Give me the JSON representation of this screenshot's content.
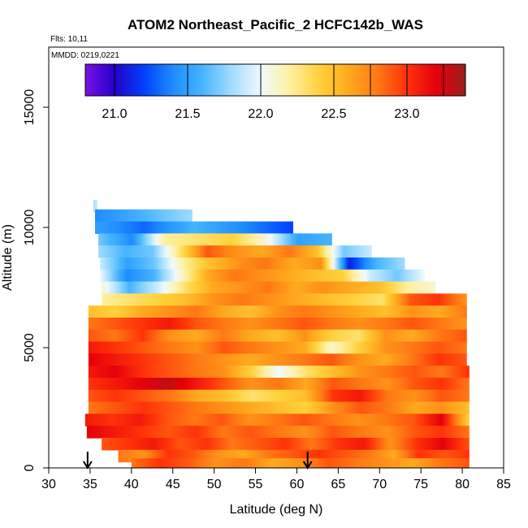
{
  "chart_data": {
    "type": "heatmap",
    "title": "ATOM2 Northeast_Pacific_2 HCFC142b_WAS",
    "flights_note": "Flts: 10,11",
    "dates_note": "MMDD: 0219,0221",
    "xlabel": "Latitude (deg N)",
    "ylabel": "Altitude (m)",
    "xlim": [
      30,
      85
    ],
    "ylim": [
      0,
      17500
    ],
    "x_ticks": [
      "30",
      "35",
      "40",
      "45",
      "50",
      "55",
      "60",
      "65",
      "70",
      "75",
      "80",
      "85"
    ],
    "y_ticks": [
      "0",
      "5000",
      "10000",
      "15000"
    ],
    "colorbar": {
      "range": [
        20.8,
        23.4
      ],
      "tick_values": [
        21.0,
        21.5,
        22.0,
        22.5,
        23.0
      ],
      "tick_labels": [
        "21.0",
        "21.5",
        "22.0",
        "22.5",
        "23.0"
      ],
      "palette": [
        "#7a10e6",
        "#2400c8",
        "#0040ff",
        "#1e8cff",
        "#46b4ff",
        "#a0dcff",
        "#f0faff",
        "#fff0a0",
        "#ffd23c",
        "#ffaa1e",
        "#ff7814",
        "#ff320a",
        "#e6000a",
        "#9b1e1e"
      ]
    },
    "arrows_at_latitude": [
      34.7,
      61.3
    ],
    "layers": [
      {
        "alt": 10900,
        "lat": [
          35.4,
          35.8
        ],
        "values": [
          21.8,
          21.9
        ]
      },
      {
        "alt": 10500,
        "lat": [
          35.6,
          47.3
        ],
        "values": [
          21.4,
          21.6,
          21.8
        ]
      },
      {
        "alt": 10000,
        "lat": [
          35.6,
          59.5
        ],
        "values": [
          21.5,
          21.3,
          21.6,
          21.4,
          21.2
        ]
      },
      {
        "alt": 9500,
        "lat": [
          36.0,
          64.2
        ],
        "values": [
          21.7,
          21.4,
          22.2,
          22.3,
          22.4,
          22.1,
          21.5,
          21.6
        ]
      },
      {
        "alt": 9000,
        "lat": [
          36.0,
          69.0
        ],
        "values": [
          21.8,
          21.6,
          21.7,
          22.3,
          22.9,
          22.7,
          22.6,
          22.8,
          22.5,
          21.7,
          21.9
        ]
      },
      {
        "alt": 8500,
        "lat": [
          36.2,
          73.0
        ],
        "values": [
          21.9,
          21.5,
          21.7,
          22.2,
          22.5,
          22.7,
          22.8,
          22.6,
          22.7,
          21.1,
          21.6,
          21.8
        ]
      },
      {
        "alt": 8000,
        "lat": [
          36.2,
          75.4
        ],
        "values": [
          22.0,
          21.4,
          21.6,
          22.1,
          22.6,
          22.8,
          22.7,
          22.6,
          22.5,
          22.4,
          21.9,
          21.7,
          22.0
        ]
      },
      {
        "alt": 7500,
        "lat": [
          36.4,
          76.7
        ],
        "values": [
          22.1,
          21.6,
          21.9,
          22.3,
          22.6,
          22.7,
          22.8,
          22.6,
          22.7,
          22.6,
          22.5,
          22.2,
          22.1
        ]
      },
      {
        "alt": 7000,
        "lat": [
          36.4,
          80.5
        ],
        "values": [
          22.2,
          22.3,
          22.4,
          22.5,
          22.7,
          22.8,
          22.7,
          22.6,
          22.5,
          22.4,
          22.3,
          22.9,
          23.0,
          22.7
        ]
      },
      {
        "alt": 6500,
        "lat": [
          34.8,
          80.5
        ],
        "values": [
          22.5,
          22.4,
          22.6,
          22.7,
          22.8,
          22.6,
          22.5,
          22.7,
          22.8,
          22.7,
          22.6,
          22.5,
          22.7,
          22.6,
          22.8
        ]
      },
      {
        "alt": 6000,
        "lat": [
          34.8,
          80.5
        ],
        "values": [
          22.8,
          22.9,
          23.0,
          23.1,
          22.9,
          22.8,
          22.7,
          22.8,
          22.9,
          22.8,
          22.7,
          22.8,
          22.9,
          22.8,
          22.7
        ]
      },
      {
        "alt": 5500,
        "lat": [
          34.8,
          80.5
        ],
        "values": [
          22.9,
          22.8,
          23.0,
          22.7,
          22.6,
          22.8,
          22.6,
          22.5,
          22.7,
          22.4,
          22.3,
          22.7,
          22.6,
          22.8,
          22.9
        ]
      },
      {
        "alt": 5000,
        "lat": [
          34.8,
          80.5
        ],
        "values": [
          23.1,
          23.0,
          22.9,
          22.8,
          22.7,
          22.9,
          22.8,
          22.7,
          22.6,
          22.1,
          22.4,
          22.7,
          22.8,
          22.9,
          22.8
        ]
      },
      {
        "alt": 4500,
        "lat": [
          34.8,
          80.5
        ],
        "values": [
          23.2,
          23.1,
          23.0,
          22.9,
          22.8,
          22.7,
          22.6,
          22.7,
          22.8,
          22.9,
          22.7,
          22.6,
          22.8,
          23.0,
          22.9
        ]
      },
      {
        "alt": 4000,
        "lat": [
          34.8,
          80.8
        ],
        "values": [
          23.1,
          23.2,
          23.0,
          22.9,
          22.8,
          22.7,
          22.4,
          22.0,
          22.3,
          22.5,
          22.7,
          22.8,
          22.9,
          22.8,
          23.0
        ]
      },
      {
        "alt": 3500,
        "lat": [
          34.8,
          80.8
        ],
        "values": [
          23.0,
          23.1,
          23.2,
          23.3,
          23.1,
          22.9,
          22.7,
          22.8,
          22.6,
          22.9,
          22.8,
          22.7,
          22.9,
          23.0,
          22.8
        ]
      },
      {
        "alt": 3000,
        "lat": [
          34.8,
          80.8
        ],
        "values": [
          22.9,
          23.0,
          22.9,
          22.8,
          22.6,
          22.5,
          22.3,
          22.4,
          22.5,
          23.0,
          23.1,
          22.8,
          22.7,
          22.9,
          22.8
        ]
      },
      {
        "alt": 2500,
        "lat": [
          34.8,
          80.8
        ],
        "values": [
          22.8,
          22.9,
          23.0,
          22.9,
          22.8,
          22.7,
          22.6,
          22.5,
          22.4,
          22.7,
          22.9,
          22.8,
          22.6,
          22.7,
          22.5
        ]
      },
      {
        "alt": 2000,
        "lat": [
          34.4,
          80.8
        ],
        "values": [
          23.1,
          23.0,
          23.1,
          22.9,
          22.8,
          22.9,
          22.7,
          22.8,
          22.9,
          22.8,
          22.7,
          22.8,
          22.9,
          23.2,
          22.4
        ]
      },
      {
        "alt": 1500,
        "lat": [
          34.6,
          80.8
        ],
        "values": [
          23.2,
          23.1,
          23.0,
          22.9,
          23.0,
          22.8,
          22.9,
          22.8,
          22.7,
          22.9,
          22.8,
          22.7,
          22.9,
          23.0,
          22.8
        ]
      },
      {
        "alt": 1000,
        "lat": [
          36.4,
          80.8
        ],
        "values": [
          22.9,
          23.0,
          23.1,
          22.9,
          23.0,
          22.8,
          22.9,
          23.0,
          22.8,
          23.0,
          23.1,
          22.7,
          23.0,
          23.2,
          22.9
        ]
      },
      {
        "alt": 500,
        "lat": [
          38.4,
          80.8
        ],
        "values": [
          22.8,
          22.7,
          23.0,
          22.9,
          22.7,
          22.6,
          22.8,
          22.9,
          23.0,
          22.9,
          22.8,
          22.6,
          23.0,
          22.9,
          23.0
        ]
      },
      {
        "alt": 150,
        "lat": [
          40.0,
          80.8
        ],
        "values": [
          22.8,
          23.0,
          22.9,
          22.7,
          22.8,
          22.6,
          22.7,
          22.9,
          22.8,
          22.7,
          22.6,
          22.8,
          22.9
        ]
      }
    ]
  }
}
